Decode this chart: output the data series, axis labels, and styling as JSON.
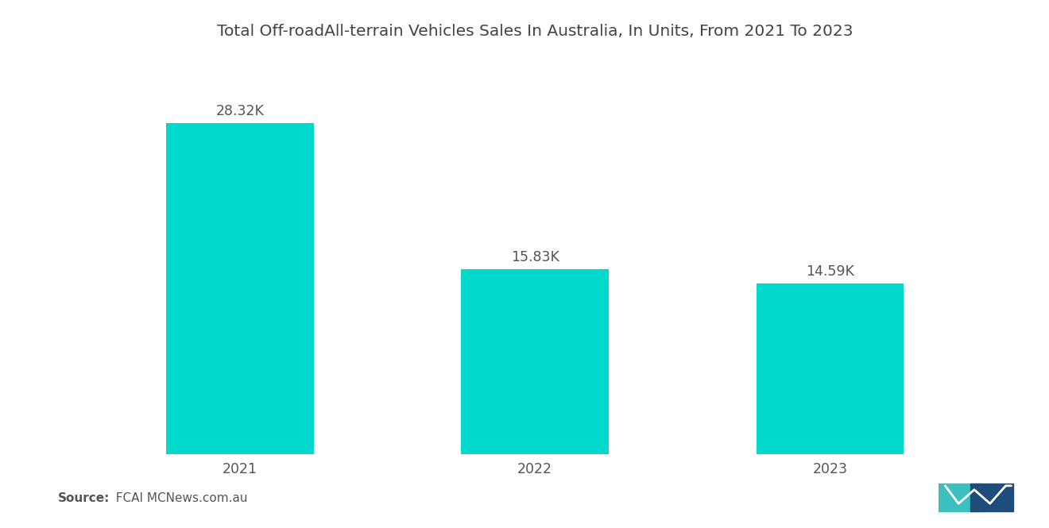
{
  "title": "Total Off-roadAll-terrain Vehicles Sales In Australia, In Units, From 2021 To 2023",
  "categories": [
    "2021",
    "2022",
    "2023"
  ],
  "values": [
    28320,
    15830,
    14590
  ],
  "labels": [
    "28.32K",
    "15.83K",
    "14.59K"
  ],
  "bar_color": "#00D9CC",
  "background_color": "#ffffff",
  "title_fontsize": 14.5,
  "label_fontsize": 12.5,
  "tick_fontsize": 12.5,
  "source_bold": "Source:",
  "source_normal": "  FCAI MCNews.com.au",
  "ylim": [
    0,
    33000
  ],
  "bar_width": 0.5,
  "xlim": [
    -0.6,
    2.6
  ]
}
